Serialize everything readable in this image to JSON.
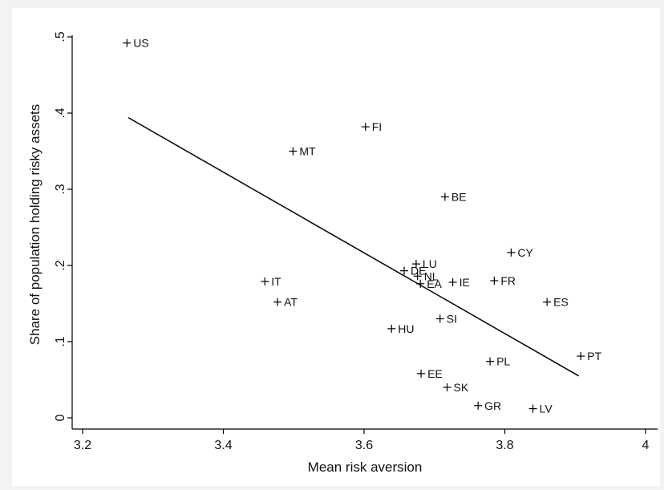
{
  "chart_data": {
    "type": "scatter",
    "title": "",
    "xlabel": "Mean risk aversion",
    "ylabel": "Share of population holding risky assets",
    "xlim": [
      3.2,
      4.0
    ],
    "ylim": [
      0,
      0.5
    ],
    "x_ticks": [
      3.2,
      3.4,
      3.6,
      3.8,
      4.0
    ],
    "x_tick_labels": [
      "3.2",
      "3.4",
      "3.6",
      "3.8",
      "4"
    ],
    "y_ticks": [
      0,
      0.1,
      0.2,
      0.3,
      0.4,
      0.5
    ],
    "y_tick_labels": [
      "0",
      ".1",
      ".2",
      ".3",
      ".4",
      ".5"
    ],
    "grid": false,
    "marker": "+",
    "points": [
      {
        "label": "US",
        "x": 3.263,
        "y": 0.492
      },
      {
        "label": "FI",
        "x": 3.602,
        "y": 0.382
      },
      {
        "label": "MT",
        "x": 3.499,
        "y": 0.35
      },
      {
        "label": "BE",
        "x": 3.715,
        "y": 0.29
      },
      {
        "label": "CY",
        "x": 3.809,
        "y": 0.217
      },
      {
        "label": "LU",
        "x": 3.674,
        "y": 0.202
      },
      {
        "label": "DE",
        "x": 3.657,
        "y": 0.193
      },
      {
        "label": "NL",
        "x": 3.676,
        "y": 0.186
      },
      {
        "label": "FR",
        "x": 3.785,
        "y": 0.18
      },
      {
        "label": "IE",
        "x": 3.726,
        "y": 0.178
      },
      {
        "label": "EA",
        "x": 3.68,
        "y": 0.176
      },
      {
        "label": "IT",
        "x": 3.459,
        "y": 0.179
      },
      {
        "label": "AT",
        "x": 3.477,
        "y": 0.152
      },
      {
        "label": "ES",
        "x": 3.86,
        "y": 0.152
      },
      {
        "label": "SI",
        "x": 3.708,
        "y": 0.13
      },
      {
        "label": "HU",
        "x": 3.639,
        "y": 0.117
      },
      {
        "label": "PT",
        "x": 3.908,
        "y": 0.081
      },
      {
        "label": "PL",
        "x": 3.779,
        "y": 0.074
      },
      {
        "label": "EE",
        "x": 3.681,
        "y": 0.058
      },
      {
        "label": "SK",
        "x": 3.718,
        "y": 0.04
      },
      {
        "label": "GR",
        "x": 3.762,
        "y": 0.016
      },
      {
        "label": "LV",
        "x": 3.84,
        "y": 0.012
      }
    ],
    "fit_line": {
      "x1": 3.265,
      "y1": 0.394,
      "x2": 3.905,
      "y2": 0.055
    }
  }
}
